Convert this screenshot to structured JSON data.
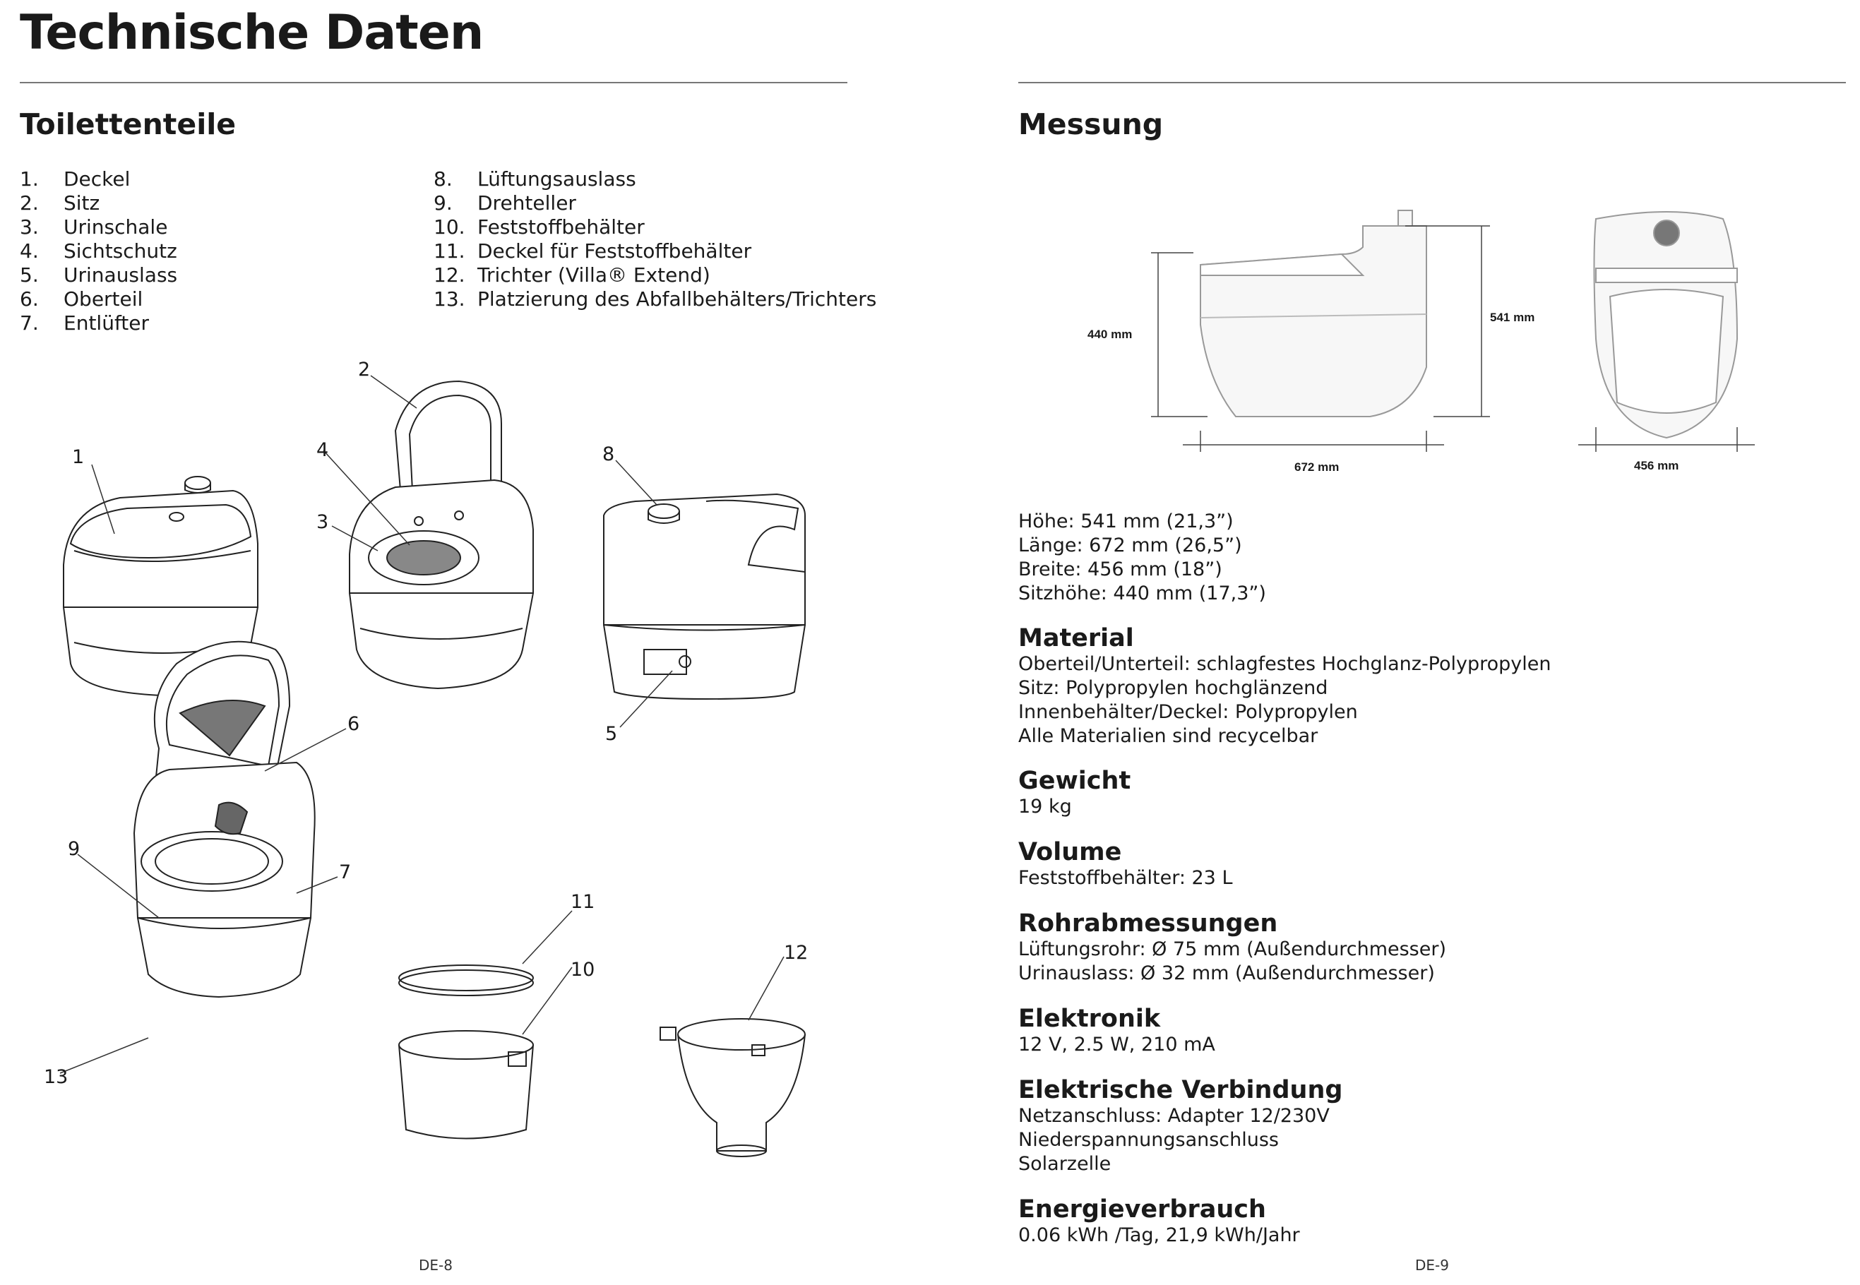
{
  "title": "Technische Daten",
  "left": {
    "heading": "Toilettenteile",
    "parts_col1": [
      {
        "num": "1.",
        "label": "Deckel"
      },
      {
        "num": "2.",
        "label": "Sitz"
      },
      {
        "num": "3.",
        "label": "Urinschale"
      },
      {
        "num": "4.",
        "label": "Sichtschutz"
      },
      {
        "num": "5.",
        "label": "Urinauslass"
      },
      {
        "num": "6.",
        "label": "Oberteil"
      },
      {
        "num": "7.",
        "label": "Entlüfter"
      }
    ],
    "parts_col2": [
      {
        "num": "8.",
        "label": "Lüftungsauslass"
      },
      {
        "num": "9.",
        "label": "Drehteller"
      },
      {
        "num": "10.",
        "label": "Feststoffbehälter"
      },
      {
        "num": "11.",
        "label": "Deckel für Feststoffbehälter"
      },
      {
        "num": "12.",
        "label": "Trichter (Villa® Extend)"
      },
      {
        "num": "13.",
        "label": "Platzierung des Abfallbehälters/Trichters"
      }
    ],
    "callouts": [
      "1",
      "2",
      "3",
      "4",
      "5",
      "6",
      "7",
      "8",
      "9",
      "10",
      "11",
      "12",
      "13"
    ],
    "page_number": "DE-8"
  },
  "right": {
    "heading": "Messung",
    "dimensions": {
      "height_seat": "440 mm",
      "height_total": "541 mm",
      "length": "672 mm",
      "width": "456 mm"
    },
    "measure_lines": [
      "Höhe: 541 mm (21,3”)",
      "Länge: 672 mm (26,5”)",
      "Breite: 456 mm (18”)",
      "Sitzhöhe: 440 mm (17,3”)"
    ],
    "specs": [
      {
        "title": "Material",
        "lines": [
          "Oberteil/Unterteil: schlagfestes Hochglanz-Polypropylen",
          "Sitz: Polypropylen hochglänzend",
          "Innenbehälter/Deckel: Polypropylen",
          "Alle Materialien sind recycelbar"
        ]
      },
      {
        "title": "Gewicht",
        "lines": [
          "19 kg"
        ]
      },
      {
        "title": "Volume",
        "lines": [
          "Feststoffbehälter: 23 L"
        ]
      },
      {
        "title": "Rohrabmessungen",
        "lines": [
          "Lüftungsrohr: Ø 75 mm (Außendurchmesser)",
          "Urinauslass: Ø 32 mm (Außendurchmesser)"
        ]
      },
      {
        "title": "Elektronik",
        "lines": [
          "12 V, 2.5 W, 210 mA"
        ]
      },
      {
        "title": "Elektrische Verbindung",
        "lines": [
          "Netzanschluss: Adapter 12/230V",
          "Niederspannungsanschluss",
          "Solarzelle"
        ]
      },
      {
        "title": "Energieverbrauch",
        "lines": [
          "0.06 kWh /Tag, 21,9 kWh/Jahr"
        ]
      }
    ],
    "page_number": "DE-9"
  }
}
